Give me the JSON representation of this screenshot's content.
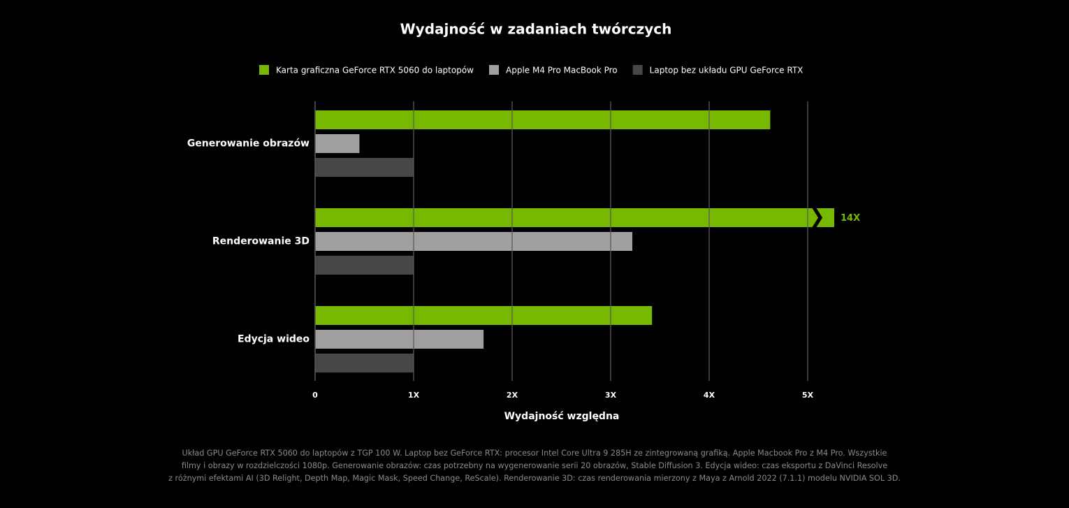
{
  "chart_data": {
    "type": "barh",
    "title": "Wydajność w zadaniach twórczych",
    "categories": [
      "Generowanie obrazów",
      "Renderowanie 3D",
      "Edycja wideo"
    ],
    "series": [
      {
        "name": "Karta graficzna GeForce RTX 5060 do laptopów",
        "color": "#76b900",
        "values": [
          4.62,
          14,
          3.42
        ],
        "value_labels": [
          null,
          "14X",
          null
        ]
      },
      {
        "name": "Apple M4 Pro MacBook Pro",
        "color": "#a0a0a0",
        "values": [
          0.45,
          3.22,
          1.71
        ]
      },
      {
        "name": "Laptop bez układu GPU GeForce RTX",
        "color": "#474747",
        "values": [
          1,
          1,
          1
        ]
      }
    ],
    "xlim": [
      0,
      5
    ],
    "xticks": [
      0,
      {
        "value": 1,
        "label": "1X"
      },
      {
        "value": 2,
        "label": "2X"
      },
      {
        "value": 3,
        "label": "3X"
      },
      {
        "value": 4,
        "label": "4X"
      },
      {
        "value": 5,
        "label": "5X"
      }
    ],
    "xlabel": "Wydajność względna",
    "grid": true,
    "legend": "top",
    "footnote": [
      "Układ GPU GeForce RTX 5060 do laptopów z TGP 100 W. Laptop bez GeForce RTX: procesor Intel Core Ultra 9 285H ze zintegrowaną grafiką. Apple Macbook Pro z M4 Pro. Wszystkie",
      "filmy i obrazy w rozdzielczości 1080p. Generowanie obrazów: czas potrzebny na wygenerowanie serii 20 obrazów, Stable Diffusion 3. Edycja wideo: czas eksportu z DaVinci Resolve",
      "z różnymi efektami AI (3D Relight, Depth Map, Magic Mask, Speed Change, ReScale). Renderowanie 3D: czas renderowania mierzony z Maya z Arnold 2022 (7.1.1) modelu NVIDIA SOL 3D."
    ]
  }
}
